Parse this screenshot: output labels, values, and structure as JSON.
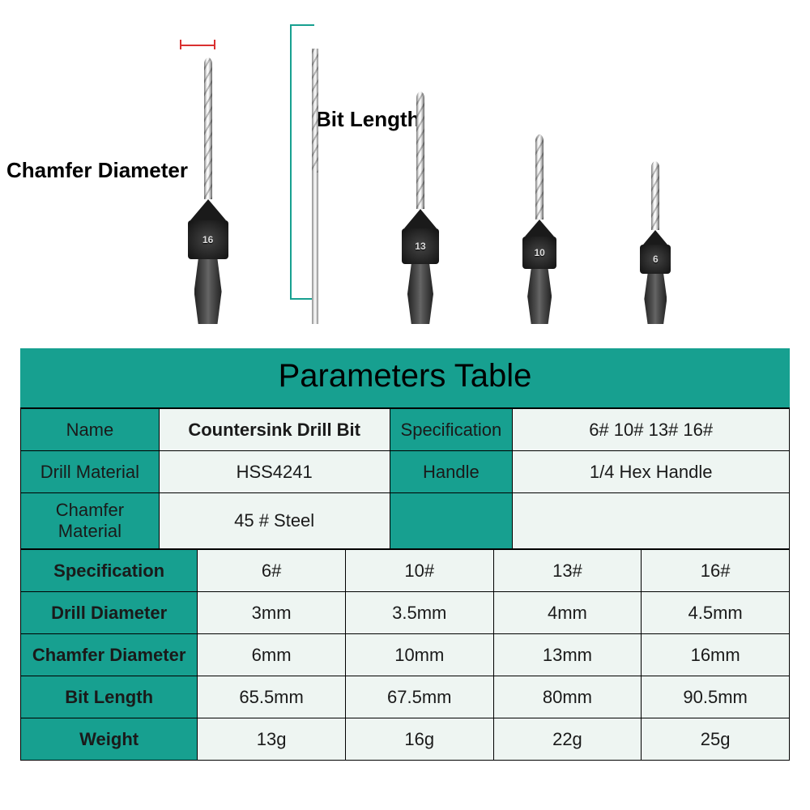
{
  "colors": {
    "teal": "#17a090",
    "teal_dark": "#0e8a7c",
    "offwhite": "#eef5f2",
    "black": "#000000",
    "red": "#d93030"
  },
  "labels": {
    "chamfer": "Chamfer Diameter",
    "bitlen": "Bit Length"
  },
  "title": "Parameters Table",
  "topRows": {
    "name_label": "Name",
    "name_value": "Countersink Drill Bit",
    "spec_label": "Specification",
    "spec_value": "6#   10#   13#   16#",
    "drill_mat_label": "Drill Material",
    "drill_mat_value": "HSS4241",
    "handle_label": "Handle",
    "handle_value": "1/4 Hex Handle",
    "chamfer_mat_label": "Chamfer Material",
    "chamfer_mat_value": "45 #  Steel"
  },
  "grid": {
    "headers": [
      "Specification",
      "Drill Diameter",
      "Chamfer Diameter",
      "Bit Length",
      "Weight"
    ],
    "columns": [
      "6#",
      "10#",
      "13#",
      "16#"
    ],
    "rows": [
      [
        "6#",
        "10#",
        "13#",
        "16#"
      ],
      [
        "3mm",
        "3.5mm",
        "4mm",
        "4.5mm"
      ],
      [
        "6mm",
        "10mm",
        "13mm",
        "16mm"
      ],
      [
        "65.5mm",
        "67.5mm",
        "80mm",
        "90.5mm"
      ],
      [
        "13g",
        "16g",
        "22g",
        "25g"
      ]
    ],
    "row_header_bg": "teal",
    "row_value_bg_alt": [
      "offwhite",
      "offwhite",
      "offwhite",
      "offwhite",
      "offwhite"
    ]
  },
  "drills": [
    {
      "num": "16",
      "bit_h": 175,
      "cone_border": 22,
      "collar_w": 50,
      "collar_h": 48,
      "hex_w": 34,
      "hex_h": 80
    },
    {
      "shaft_only": true,
      "shaft_h": 340
    },
    {
      "num": "13",
      "bit_h": 145,
      "cone_border": 20,
      "collar_w": 46,
      "collar_h": 44,
      "hex_w": 32,
      "hex_h": 74
    },
    {
      "num": "10",
      "bit_h": 105,
      "cone_border": 18,
      "collar_w": 42,
      "collar_h": 40,
      "hex_w": 30,
      "hex_h": 68
    },
    {
      "num": "6",
      "bit_h": 85,
      "cone_border": 15,
      "collar_w": 38,
      "collar_h": 36,
      "hex_w": 28,
      "hex_h": 62
    }
  ],
  "style": {
    "label_fontsize": 26,
    "title_fontsize": 40,
    "cell_fontsize": 22,
    "hdr_fontsize": 20,
    "band_teal_rows": [
      0,
      1,
      2
    ],
    "top_block_col_widths": [
      "18%",
      "30%",
      "16%",
      "36%"
    ],
    "grid_col_widths": [
      "23%",
      "19.25%",
      "19.25%",
      "19.25%",
      "19.25%"
    ]
  }
}
